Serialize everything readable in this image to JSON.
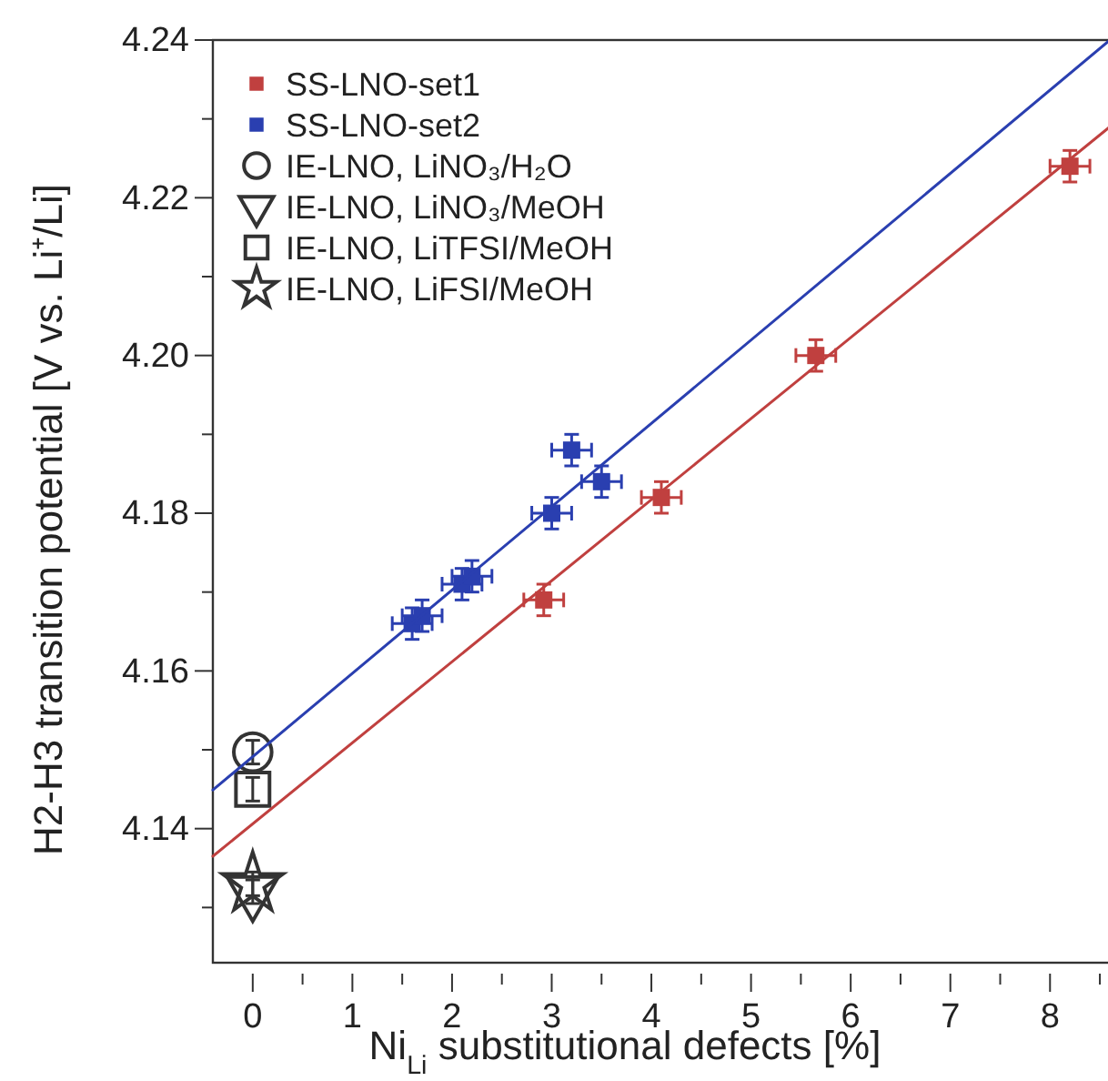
{
  "chart_data": {
    "type": "scatter",
    "xlabel": "Ni$_{Li}$ substitutional defects [%]",
    "ylabel": "H2-H3 transition potential [V vs. Li⁺/Li]",
    "xlim": [
      -0.4,
      8.6
    ],
    "ylim": [
      4.123,
      4.24
    ],
    "xticks": [
      0,
      {
        "value": 0.5,
        "label": null
      },
      1,
      {
        "value": 1.5,
        "label": null
      },
      2,
      {
        "value": 2.5,
        "label": null
      },
      3,
      {
        "value": 3.5,
        "label": null
      },
      4,
      {
        "value": 4.5,
        "label": null
      },
      5,
      {
        "value": 5.5,
        "label": null
      },
      6,
      {
        "value": 6.5,
        "label": null
      },
      7,
      {
        "value": 7.5,
        "label": null
      },
      8,
      {
        "value": 8.5,
        "label": null
      }
    ],
    "yticks": [
      {
        "value": 4.13,
        "label": null
      },
      4.14,
      {
        "value": 4.15,
        "label": null
      },
      4.16,
      {
        "value": 4.17,
        "label": null
      },
      4.18,
      {
        "value": 4.19,
        "label": null
      },
      {
        "value": 4.2,
        "label": "4.20"
      },
      {
        "value": 4.21,
        "label": null
      },
      4.22,
      {
        "value": 4.23,
        "label": null
      },
      4.24
    ],
    "legend": "top left",
    "grid": false,
    "series": [
      {
        "name": "SS-LNO-set1",
        "color": "#c0403f",
        "marker": "square",
        "x": [
          2.92,
          4.1,
          5.65,
          8.2
        ],
        "values": [
          4.169,
          4.182,
          4.2,
          4.224
        ],
        "errors": [
          0.002,
          0.002,
          0.002,
          0.002
        ],
        "xerrors": [
          0.2,
          0.2,
          0.2,
          0.2
        ]
      },
      {
        "name": "SS-LNO-set2",
        "color": "#2a3fb0",
        "marker": "square",
        "x": [
          1.6,
          1.7,
          2.1,
          2.2,
          3.0,
          3.2,
          3.5
        ],
        "values": [
          4.166,
          4.167,
          4.171,
          4.172,
          4.18,
          4.188,
          4.184
        ],
        "errors": [
          0.002,
          0.002,
          0.002,
          0.002,
          0.002,
          0.002,
          0.002
        ],
        "xerrors": [
          0.2,
          0.2,
          0.2,
          0.2,
          0.2,
          0.2,
          0.2
        ]
      },
      {
        "name": "IE-LNO, LiNO₃/H₂O",
        "color": "#333333",
        "marker": "circle",
        "x": [
          0
        ],
        "values": [
          4.1497
        ],
        "errors": [
          0.0015
        ]
      },
      {
        "name": "IE-LNO, LiNO₃/MeOH",
        "color": "#333333",
        "marker": "triangle",
        "x": [
          0
        ],
        "values": [
          4.132
        ],
        "errors": [
          0.0015
        ]
      },
      {
        "name": "IE-LNO, LiTFSI/MeOH",
        "color": "#333333",
        "marker": "square",
        "x": [
          0
        ],
        "values": [
          4.145
        ],
        "errors": [
          0.0015
        ]
      },
      {
        "name": "IE-LNO, LiFSI/MeOH",
        "color": "#333333",
        "marker": "star",
        "x": [
          0
        ],
        "values": [
          4.133
        ],
        "errors": [
          0.0015
        ]
      },
      {
        "type": "line",
        "color": "#c0403f",
        "x": [
          -0.4,
          8.6
        ],
        "values": [
          4.1365,
          4.229
        ]
      },
      {
        "type": "line",
        "color": "#2a3fb0",
        "x": [
          -0.4,
          8.6
        ],
        "values": [
          4.1449,
          4.24
        ]
      }
    ]
  }
}
